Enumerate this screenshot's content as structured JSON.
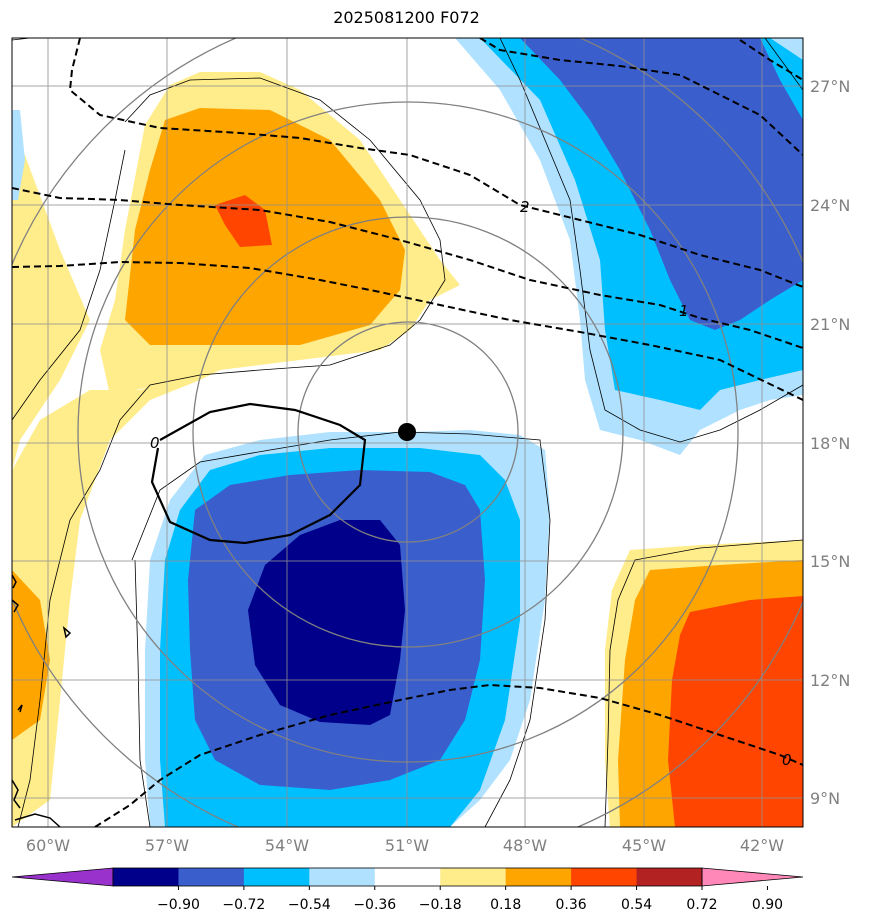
{
  "title": "2025081200 F072",
  "map": {
    "lat_labels": [
      "27°N",
      "24°N",
      "21°N",
      "18°N",
      "15°N",
      "12°N",
      "9°N"
    ],
    "lon_labels": [
      "60°W",
      "57°W",
      "54°W",
      "51°W",
      "48°W",
      "45°W",
      "42°W"
    ],
    "contour_labels": [
      "2",
      "1",
      "0",
      "0"
    ],
    "storm_center": {
      "lon": "51°W",
      "lat": "18°N"
    }
  },
  "colorbar": {
    "labels": [
      "−0.90",
      "−0.72",
      "−0.54",
      "−0.36",
      "−0.18",
      "0.18",
      "0.36",
      "0.54",
      "0.72",
      "0.90"
    ],
    "colors": [
      "#9932cc",
      "#00008b",
      "#3a5fcd",
      "#00bfff",
      "#b0e2ff",
      "#ffffff",
      "#ffec8b",
      "#ffa500",
      "#ff4500",
      "#b22222",
      "#ff88b8"
    ]
  }
}
